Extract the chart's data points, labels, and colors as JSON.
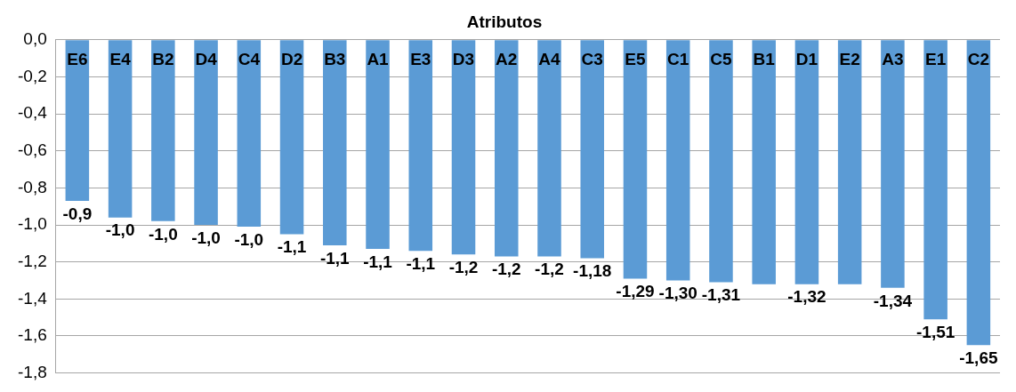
{
  "chart_data": {
    "type": "bar",
    "title": "Atributos",
    "categories": [
      "E6",
      "E4",
      "B2",
      "D4",
      "C4",
      "D2",
      "B3",
      "A1",
      "E3",
      "D3",
      "A2",
      "A4",
      "C3",
      "E5",
      "C1",
      "C5",
      "B1",
      "D1",
      "E2",
      "A3",
      "E1",
      "C2"
    ],
    "values": [
      -0.87,
      -0.96,
      -0.98,
      -1.0,
      -1.01,
      -1.05,
      -1.11,
      -1.13,
      -1.14,
      -1.16,
      -1.17,
      -1.17,
      -1.18,
      -1.29,
      -1.3,
      -1.31,
      -1.32,
      -1.32,
      -1.32,
      -1.34,
      -1.51,
      -1.65
    ],
    "value_labels": [
      "-0,9",
      "-1,0",
      "-1,0",
      "-1,0",
      "-1,0",
      "-1,1",
      "-1,1",
      "-1,1",
      "-1,1",
      "-1,2",
      "-1,2",
      "-1,2",
      "-1,18",
      "-1,29",
      "-1,30",
      "-1,31",
      null,
      "-1,32",
      null,
      "-1,34",
      "-1,51",
      "-1,65"
    ],
    "color": "#5b9bd5",
    "ylim": [
      -1.8,
      0
    ],
    "yticks": [
      {
        "value": 0,
        "label": "0,0"
      },
      {
        "value": -0.2,
        "label": "-0,2"
      },
      {
        "value": -0.4,
        "label": "-0,4"
      },
      {
        "value": -0.6,
        "label": "-0,6"
      },
      {
        "value": -0.8,
        "label": "-0,8"
      },
      {
        "value": -1.0,
        "label": "-1,0"
      },
      {
        "value": -1.2,
        "label": "-1,2"
      },
      {
        "value": -1.4,
        "label": "-1,4"
      },
      {
        "value": -1.6,
        "label": "-1,6"
      },
      {
        "value": -1.8,
        "label": "-1,8"
      }
    ],
    "grid": "y",
    "legend": false
  }
}
